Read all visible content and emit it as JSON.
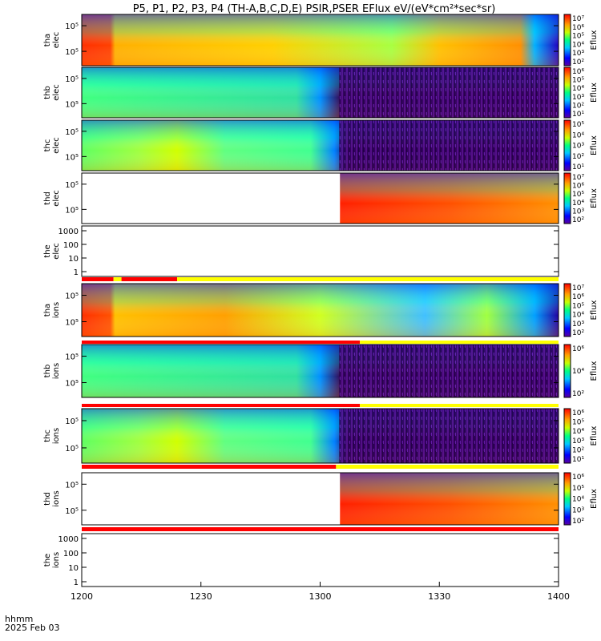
{
  "chart_data": {
    "type": "heatmap",
    "title": "P5, P1, P2, P3, P4 (TH-A,B,C,D,E) PSIR,PSER EFlux eV/(eV*cm²*sec*sr)",
    "x": {
      "label": "hhmm",
      "date": "2025 Feb 03",
      "ticks": [
        "1200",
        "1230",
        "1300",
        "1330",
        "1400"
      ],
      "range": [
        "12:00",
        "14:00"
      ]
    },
    "colorbar_label": "Eflux",
    "panels": [
      {
        "id": "tha-elec",
        "probe": "tha",
        "species": "elec",
        "ylabel": [
          "tha",
          "elec"
        ],
        "yticks": [
          "10⁵",
          "10⁵"
        ],
        "colorbar": [
          "10⁷",
          "10⁶",
          "10⁵",
          "10⁴",
          "10³",
          "10²"
        ],
        "data_until": "14:00"
      },
      {
        "id": "thb-elec",
        "probe": "thb",
        "species": "elec",
        "ylabel": [
          "thb",
          "elec"
        ],
        "yticks": [
          "10⁵",
          "10⁵"
        ],
        "colorbar": [
          "10⁶",
          "10⁵",
          "10⁴",
          "10³",
          "10²",
          "10¹"
        ],
        "data_until": "14:00"
      },
      {
        "id": "thc-elec",
        "probe": "thc",
        "species": "elec",
        "ylabel": [
          "thc",
          "elec"
        ],
        "yticks": [
          "10⁵",
          "10⁵"
        ],
        "colorbar": [
          "10⁵",
          "10⁴",
          "10³",
          "10²",
          "10¹"
        ],
        "data_until": "14:00"
      },
      {
        "id": "thd-elec",
        "probe": "thd",
        "species": "elec",
        "ylabel": [
          "thd",
          "elec"
        ],
        "yticks": [
          "10⁵",
          "10⁵"
        ],
        "colorbar": [
          "10⁷",
          "10⁶",
          "10⁵",
          "10⁴",
          "10³",
          "10²"
        ],
        "data_from": "13:05"
      },
      {
        "id": "the-elec",
        "probe": "the",
        "species": "elec",
        "ylabel": [
          "the",
          "elec"
        ],
        "yticks": [
          "1000",
          "100",
          "10",
          "1"
        ],
        "empty": true
      },
      {
        "id": "tha-ions",
        "probe": "tha",
        "species": "ions",
        "ylabel": [
          "tha",
          "ions"
        ],
        "yticks": [
          "10⁵",
          "10⁵"
        ],
        "colorbar": [
          "10⁷",
          "10⁶",
          "10⁵",
          "10⁴",
          "10³",
          "10²"
        ],
        "data_until": "14:00"
      },
      {
        "id": "thb-ions",
        "probe": "thb",
        "species": "ions",
        "ylabel": [
          "thb",
          "ions"
        ],
        "yticks": [
          "10⁵",
          "10⁵"
        ],
        "colorbar": [
          "10⁶",
          "10⁴",
          "10²"
        ],
        "data_until": "14:00"
      },
      {
        "id": "thc-ions",
        "probe": "thc",
        "species": "ions",
        "ylabel": [
          "thc",
          "ions"
        ],
        "yticks": [
          "10⁵",
          "10⁵"
        ],
        "colorbar": [
          "10⁶",
          "10⁵",
          "10⁴",
          "10³",
          "10²",
          "10¹"
        ],
        "data_until": "14:00"
      },
      {
        "id": "thd-ions",
        "probe": "thd",
        "species": "ions",
        "ylabel": [
          "thd",
          "ions"
        ],
        "yticks": [
          "10⁵",
          "10⁵"
        ],
        "colorbar": [
          "10⁶",
          "10⁵",
          "10⁴",
          "10³",
          "10²"
        ],
        "data_from": "13:05"
      },
      {
        "id": "the-ions",
        "probe": "the",
        "species": "ions",
        "ylabel": [
          "the",
          "ions"
        ],
        "yticks": [
          "1000",
          "100",
          "10",
          "1"
        ],
        "empty": true
      }
    ],
    "mode_bars": [
      {
        "segments": [
          {
            "from": "12:00",
            "to": "12:08",
            "color": "#ff0000"
          },
          {
            "from": "12:08",
            "to": "12:10",
            "color": "#ffff00"
          },
          {
            "from": "12:10",
            "to": "12:24",
            "color": "#ff0000"
          },
          {
            "from": "12:24",
            "to": "14:00",
            "color": "#ffff00"
          }
        ]
      },
      {
        "segments": [
          {
            "from": "12:00",
            "to": "13:10",
            "color": "#ff0000"
          },
          {
            "from": "13:10",
            "to": "14:00",
            "color": "#ffff00"
          }
        ]
      },
      {
        "segments": [
          {
            "from": "12:00",
            "to": "13:10",
            "color": "#ff0000"
          },
          {
            "from": "13:10",
            "to": "14:00",
            "color": "#ffff00"
          }
        ]
      },
      {
        "segments": [
          {
            "from": "12:00",
            "to": "13:04",
            "color": "#ff0000"
          },
          {
            "from": "13:04",
            "to": "14:00",
            "color": "#ffff00"
          }
        ]
      },
      {
        "segments": [
          {
            "from": "12:00",
            "to": "14:00",
            "color": "#ff0000"
          }
        ]
      }
    ]
  }
}
